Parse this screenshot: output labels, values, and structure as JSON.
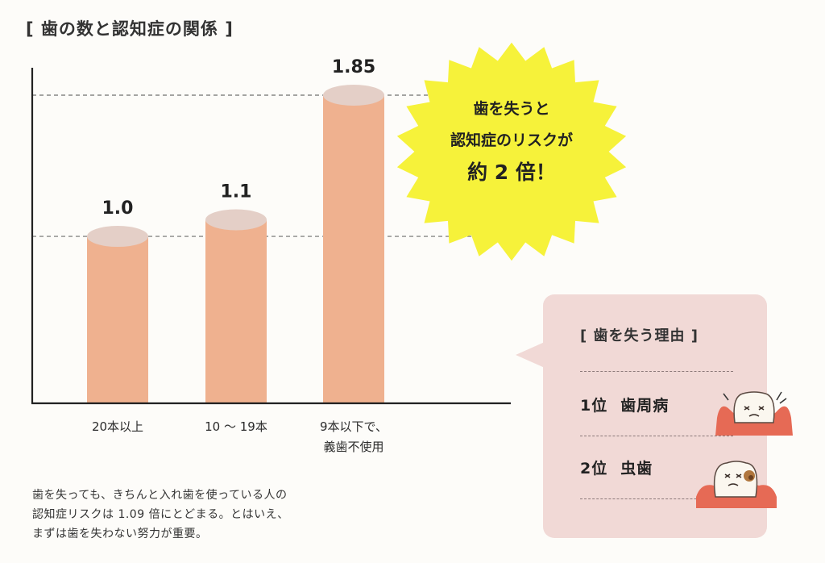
{
  "title": "[ 歯の数と認知症の関係 ]",
  "chart_data": {
    "type": "bar",
    "categories": [
      "20本以上",
      "10 ～ 19本",
      "9本以下で、\n義歯不使用"
    ],
    "category_lines": [
      [
        "20本以上"
      ],
      [
        "10 ～ 19本"
      ],
      [
        "9本以下で、",
        "義歯不使用"
      ]
    ],
    "values": [
      1.0,
      1.1,
      1.85
    ],
    "value_labels": [
      "1.0",
      "1.1",
      "1.85"
    ],
    "ylim": [
      0,
      2.0
    ],
    "reference_lines": [
      1.0,
      1.85
    ],
    "bar_color": "#efb18f",
    "bar_top_color": "#e4cfc7",
    "grid": false
  },
  "callout": {
    "line1": "歯を失うと",
    "line2": "認知症のリスクが",
    "line3": "約 2 倍！",
    "color": "#f6f23a"
  },
  "reasons": {
    "title": "[ 歯を失う理由 ]",
    "items": [
      {
        "rank": "1位",
        "label": "歯周病"
      },
      {
        "rank": "2位",
        "label": "虫歯"
      }
    ],
    "box_color": "#f1d9d6"
  },
  "note": [
    "歯を失っても、きちんと入れ歯を使っている人の",
    "認知症リスクは 1.09 倍にとどまる。とはいえ、",
    "まずは歯を失わない努力が重要。"
  ]
}
